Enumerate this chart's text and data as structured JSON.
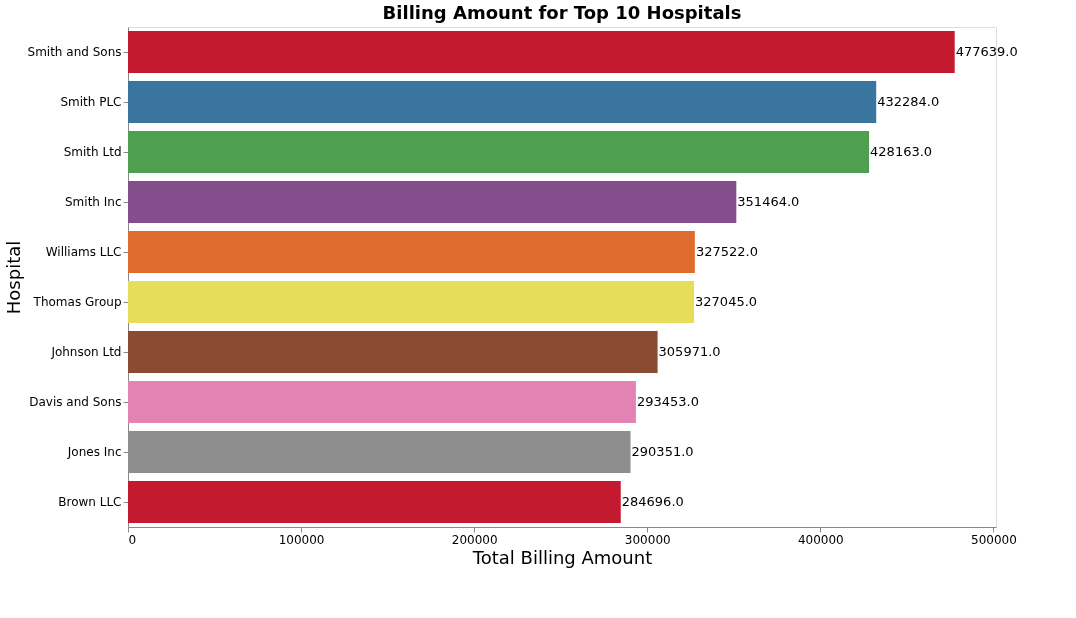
{
  "chart_data": {
    "type": "bar",
    "orientation": "horizontal",
    "title": "Billing Amount for Top 10 Hospitals",
    "xlabel": "Total Billing Amount",
    "ylabel": "Hospital",
    "categories": [
      "Smith and Sons",
      "Smith PLC",
      "Smith Ltd",
      "Smith Inc",
      "Williams LLC",
      "Thomas Group",
      "Johnson Ltd",
      "Davis and Sons",
      "Jones Inc",
      "Brown LLC"
    ],
    "values": [
      477639,
      432284,
      428163,
      351464,
      327522,
      327045,
      305971,
      293453,
      290351,
      284696
    ],
    "value_labels": [
      "477639.0",
      "432284.0",
      "428163.0",
      "351464.0",
      "327522.0",
      "327045.0",
      "305971.0",
      "293453.0",
      "290351.0",
      "284696.0"
    ],
    "colors": [
      "#c41a30",
      "#3a75a0",
      "#4e9f50",
      "#844d8c",
      "#df6b2f",
      "#e6de5a",
      "#8b4a32",
      "#e283b4",
      "#8d8d8d",
      "#c41a30"
    ],
    "xlim": [
      0,
      501500
    ],
    "xticks": [
      0,
      100000,
      200000,
      300000,
      400000,
      500000
    ],
    "grid": false
  }
}
